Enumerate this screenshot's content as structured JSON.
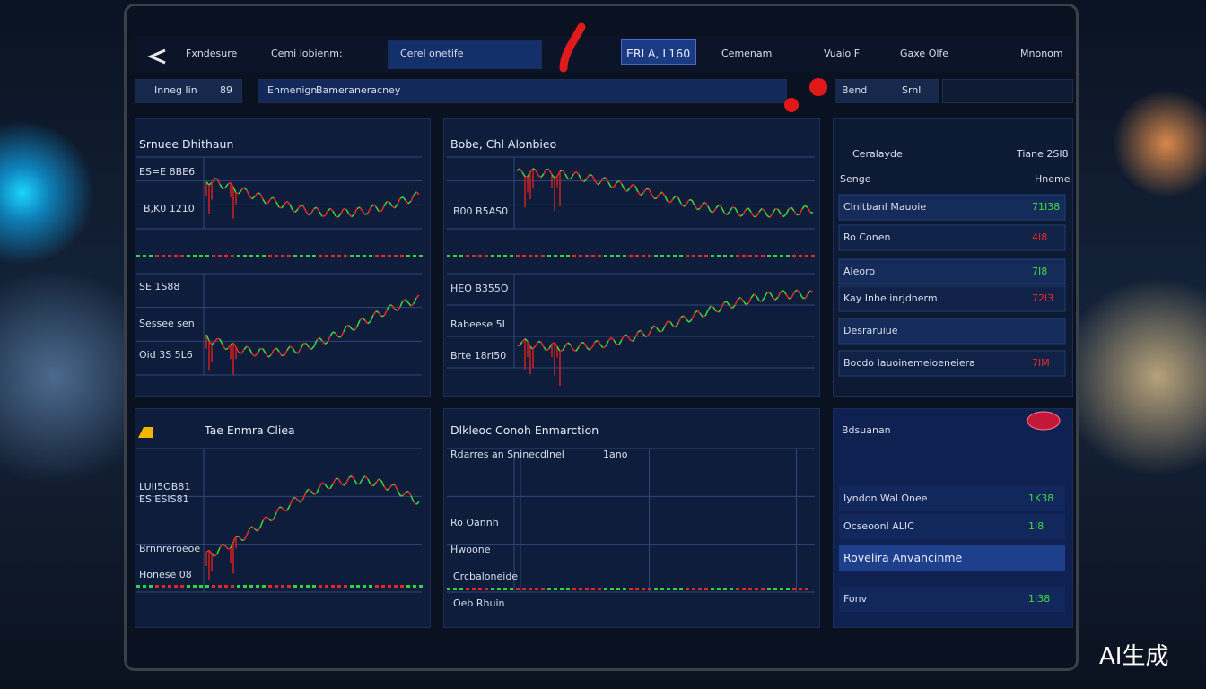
{
  "nav": {
    "items": [
      "Fxndesure",
      "Cemi lobienm:",
      "Cerel onetife",
      "ERLA, L160",
      "Cemenam",
      "Vuaio F",
      "Gaxe Olfe",
      "Mnonom"
    ]
  },
  "toolbar": {
    "items": [
      "Inneg Iin",
      "89",
      "Ehmenign",
      "Bameraneracney",
      "Bend",
      "Srnl"
    ]
  },
  "panels": [
    {
      "title": "Srnuee Dhithaun",
      "labels": [
        "ES=E 8BE6",
        "B,K0 1210",
        "SE 1S88",
        "Sessee sen",
        "Oid 3S 5L6"
      ]
    },
    {
      "title": "Bobe, Chl Alonbieo",
      "labels": [
        "B00 B5AS0",
        "HEO B355O",
        "Rabeese 5L",
        "Brte 18rl50"
      ]
    },
    {
      "title": "Ceralayde",
      "subtitle": "Tiane 2SI8",
      "header": [
        "Senge",
        "Hneme"
      ],
      "rows": [
        {
          "label": "Clnitbanl Mauoie",
          "value": "71I38",
          "color": "#3ddc3d"
        },
        {
          "label": "Ro Conen",
          "value": "4I8",
          "color": "#e52b2b"
        },
        {
          "label": "Aleoro",
          "value": "7I8",
          "color": "#3ddc3d"
        },
        {
          "label": "Kay Inhe inrjdnerm",
          "value": "72I3",
          "color": "#e52b2b"
        },
        {
          "label": "Desraruiue"
        },
        {
          "label": "Bocdo Iauoinemeioeneiera",
          "value": "7IM",
          "color": "#e52b2b"
        }
      ]
    },
    {
      "title": "Tae Enmra Cliea",
      "labels": [
        "LUII5OB81",
        "ES ESIS81",
        "Brnnreroeoe",
        "Honese 08"
      ]
    },
    {
      "title": "Dlkleoc Conoh Enmarction",
      "labels": [
        "Rdarres an Sninecdlnel",
        "1ano",
        "Ro Oannh",
        "Hwoone",
        "Crcbaloneide",
        "Oeb Rhuin"
      ]
    },
    {
      "title": "Bdsuanan",
      "rows": [
        {
          "label": "Iyndon Wal Onee",
          "value": "1K38",
          "color": "#3ddc3d"
        },
        {
          "label": "Ocseoonl ALIC",
          "value": "1I8",
          "color": "#3ddc3d"
        },
        {
          "label": "Rovelira Anvancinme"
        },
        {
          "label": "Fonv",
          "value": "1I38",
          "color": "#3ddc3d"
        }
      ]
    }
  ],
  "watermark": "AI生成"
}
